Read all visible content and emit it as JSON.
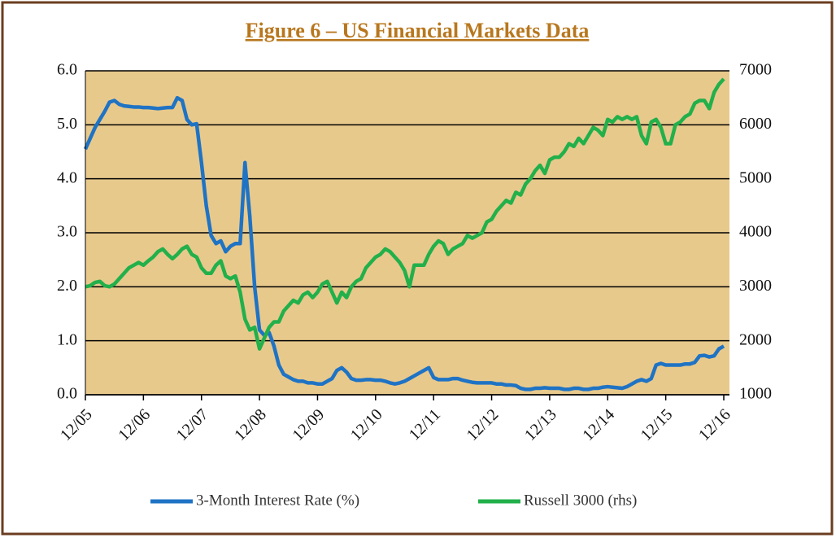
{
  "chart_data": {
    "type": "line",
    "title": "Figure 6 – US Financial Markets Data",
    "categories": [
      "12/05",
      null,
      null,
      null,
      null,
      null,
      null,
      null,
      null,
      null,
      null,
      null,
      "12/06",
      null,
      null,
      null,
      null,
      null,
      null,
      null,
      null,
      null,
      null,
      null,
      "12/07",
      null,
      null,
      null,
      null,
      null,
      null,
      null,
      null,
      null,
      null,
      null,
      "12/08",
      null,
      null,
      null,
      null,
      null,
      null,
      null,
      null,
      null,
      null,
      null,
      "12/09",
      null,
      null,
      null,
      null,
      null,
      null,
      null,
      null,
      null,
      null,
      null,
      "12/10",
      null,
      null,
      null,
      null,
      null,
      null,
      null,
      null,
      null,
      null,
      null,
      "12/11",
      null,
      null,
      null,
      null,
      null,
      null,
      null,
      null,
      null,
      null,
      null,
      "12/12",
      null,
      null,
      null,
      null,
      null,
      null,
      null,
      null,
      null,
      null,
      null,
      "12/13",
      null,
      null,
      null,
      null,
      null,
      null,
      null,
      null,
      null,
      null,
      null,
      "12/14",
      null,
      null,
      null,
      null,
      null,
      null,
      null,
      null,
      null,
      null,
      null,
      "12/15",
      null,
      null,
      null,
      null,
      null,
      null,
      null,
      null,
      null,
      null,
      null,
      "12/16"
    ],
    "series": [
      {
        "name": "3-Month Interest Rate (%)",
        "color": "#1f73c4",
        "axis": "y",
        "values": [
          4.55,
          4.75,
          4.95,
          5.1,
          5.25,
          5.42,
          5.45,
          5.38,
          5.35,
          5.34,
          5.33,
          5.33,
          5.32,
          5.32,
          5.31,
          5.3,
          5.31,
          5.32,
          5.32,
          5.5,
          5.45,
          5.1,
          5.0,
          5.02,
          4.3,
          3.5,
          2.95,
          2.8,
          2.85,
          2.65,
          2.75,
          2.8,
          2.8,
          4.3,
          3.3,
          2.0,
          1.2,
          1.1,
          1.15,
          0.9,
          0.55,
          0.38,
          0.33,
          0.28,
          0.25,
          0.25,
          0.22,
          0.22,
          0.2,
          0.2,
          0.25,
          0.3,
          0.45,
          0.5,
          0.42,
          0.3,
          0.27,
          0.27,
          0.28,
          0.28,
          0.27,
          0.27,
          0.25,
          0.22,
          0.2,
          0.22,
          0.25,
          0.3,
          0.35,
          0.4,
          0.45,
          0.5,
          0.32,
          0.28,
          0.28,
          0.28,
          0.3,
          0.3,
          0.27,
          0.25,
          0.23,
          0.22,
          0.22,
          0.22,
          0.22,
          0.2,
          0.2,
          0.18,
          0.18,
          0.17,
          0.12,
          0.1,
          0.1,
          0.12,
          0.12,
          0.13,
          0.12,
          0.12,
          0.12,
          0.1,
          0.1,
          0.12,
          0.12,
          0.1,
          0.1,
          0.12,
          0.12,
          0.14,
          0.15,
          0.14,
          0.13,
          0.12,
          0.15,
          0.2,
          0.25,
          0.28,
          0.25,
          0.3,
          0.55,
          0.58,
          0.55,
          0.55,
          0.55,
          0.55,
          0.57,
          0.57,
          0.6,
          0.72,
          0.73,
          0.7,
          0.72,
          0.85,
          0.9
        ]
      },
      {
        "name": "Russell 3000 (rhs)",
        "color": "#22b04b",
        "axis": "y2",
        "values": [
          3000,
          3020,
          3080,
          3100,
          3020,
          3000,
          3050,
          3150,
          3250,
          3350,
          3400,
          3450,
          3400,
          3480,
          3550,
          3650,
          3700,
          3600,
          3520,
          3600,
          3700,
          3750,
          3600,
          3550,
          3350,
          3250,
          3250,
          3400,
          3480,
          3200,
          3150,
          3200,
          2900,
          2400,
          2200,
          2250,
          1850,
          2050,
          2250,
          2350,
          2350,
          2550,
          2650,
          2750,
          2700,
          2850,
          2900,
          2800,
          2900,
          3050,
          3100,
          2900,
          2700,
          2900,
          2800,
          3000,
          3100,
          3150,
          3350,
          3450,
          3550,
          3600,
          3700,
          3650,
          3550,
          3450,
          3300,
          3000,
          3400,
          3400,
          3400,
          3600,
          3750,
          3850,
          3800,
          3600,
          3700,
          3750,
          3800,
          3950,
          3900,
          3950,
          4000,
          4200,
          4250,
          4400,
          4500,
          4600,
          4550,
          4750,
          4700,
          4900,
          5000,
          5150,
          5250,
          5100,
          5350,
          5400,
          5400,
          5500,
          5650,
          5600,
          5750,
          5650,
          5800,
          5950,
          5900,
          5800,
          6100,
          6050,
          6150,
          6100,
          6150,
          6100,
          6150,
          5800,
          5650,
          6050,
          6100,
          5950,
          5650,
          5650,
          6000,
          6050,
          6150,
          6200,
          6400,
          6450,
          6450,
          6300,
          6600,
          6750,
          6850
        ]
      }
    ],
    "ylim": [
      0,
      6
    ],
    "yticks": [
      {
        "value": 0,
        "label": "0.0"
      },
      {
        "value": 1,
        "label": "1.0"
      },
      {
        "value": 2,
        "label": "2.0"
      },
      {
        "value": 3,
        "label": "3.0"
      },
      {
        "value": 4,
        "label": "4.0"
      },
      {
        "value": 5,
        "label": "5.0"
      },
      {
        "value": 6,
        "label": "6.0"
      }
    ],
    "y2lim": [
      1000,
      7000
    ],
    "y2ticks": [
      1000,
      2000,
      3000,
      4000,
      5000,
      6000,
      7000
    ],
    "grid": true,
    "legend": "bottom"
  }
}
